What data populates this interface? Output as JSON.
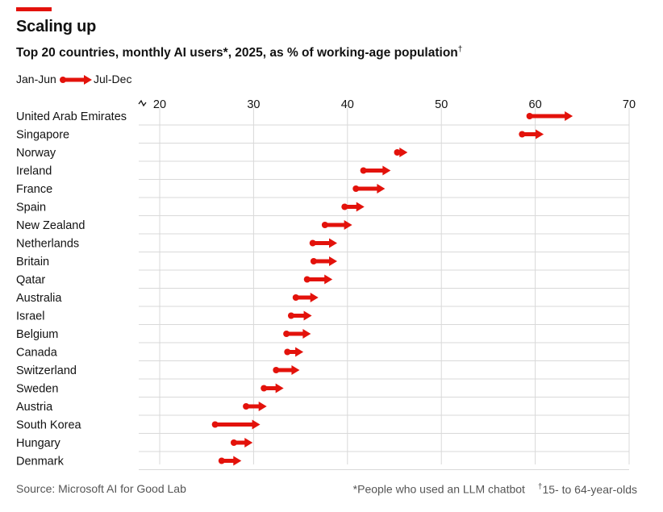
{
  "title": "Scaling up",
  "subtitle": "Top 20 countries, monthly AI users*, 2025, as % of working-age population",
  "subtitle_mark": "†",
  "legend": {
    "start_label": "Jan-Jun",
    "end_label": "Jul-Dec"
  },
  "source": "Source: Microsoft AI for Good Lab",
  "footnotes": {
    "star": "*People who used an LLM chatbot",
    "dagger_mark": "†",
    "dagger": "15- to 64-year-olds"
  },
  "colors": {
    "accent": "#e3120b",
    "grid": "#d9d9d9",
    "text": "#121212"
  },
  "chart_data": {
    "type": "arrow-dot",
    "title": "Scaling up",
    "xlabel": "",
    "ylabel": "",
    "xlim": [
      18,
      70
    ],
    "x_ticks": [
      20,
      30,
      40,
      50,
      60,
      70
    ],
    "x_axis_break": true,
    "grid": true,
    "series": [
      {
        "name": "Jan-Jun",
        "role": "start"
      },
      {
        "name": "Jul-Dec",
        "role": "end"
      }
    ],
    "countries": [
      {
        "name": "United Arab Emirates",
        "jan_jun": 59.4,
        "jul_dec": 64.0
      },
      {
        "name": "Singapore",
        "jan_jun": 58.6,
        "jul_dec": 60.9
      },
      {
        "name": "Norway",
        "jan_jun": 45.3,
        "jul_dec": 46.4
      },
      {
        "name": "Ireland",
        "jan_jun": 41.7,
        "jul_dec": 44.6
      },
      {
        "name": "France",
        "jan_jun": 40.9,
        "jul_dec": 44.0
      },
      {
        "name": "Spain",
        "jan_jun": 39.7,
        "jul_dec": 41.8
      },
      {
        "name": "New Zealand",
        "jan_jun": 37.6,
        "jul_dec": 40.5
      },
      {
        "name": "Netherlands",
        "jan_jun": 36.3,
        "jul_dec": 38.9
      },
      {
        "name": "Britain",
        "jan_jun": 36.4,
        "jul_dec": 38.9
      },
      {
        "name": "Qatar",
        "jan_jun": 35.7,
        "jul_dec": 38.4
      },
      {
        "name": "Australia",
        "jan_jun": 34.5,
        "jul_dec": 36.9
      },
      {
        "name": "Israel",
        "jan_jun": 34.0,
        "jul_dec": 36.2
      },
      {
        "name": "Belgium",
        "jan_jun": 33.5,
        "jul_dec": 36.1
      },
      {
        "name": "Canada",
        "jan_jun": 33.6,
        "jul_dec": 35.3
      },
      {
        "name": "Switzerland",
        "jan_jun": 32.4,
        "jul_dec": 34.9
      },
      {
        "name": "Sweden",
        "jan_jun": 31.1,
        "jul_dec": 33.2
      },
      {
        "name": "Austria",
        "jan_jun": 29.2,
        "jul_dec": 31.4
      },
      {
        "name": "South Korea",
        "jan_jun": 25.9,
        "jul_dec": 30.7
      },
      {
        "name": "Hungary",
        "jan_jun": 27.9,
        "jul_dec": 29.9
      },
      {
        "name": "Denmark",
        "jan_jun": 26.6,
        "jul_dec": 28.7
      }
    ]
  }
}
